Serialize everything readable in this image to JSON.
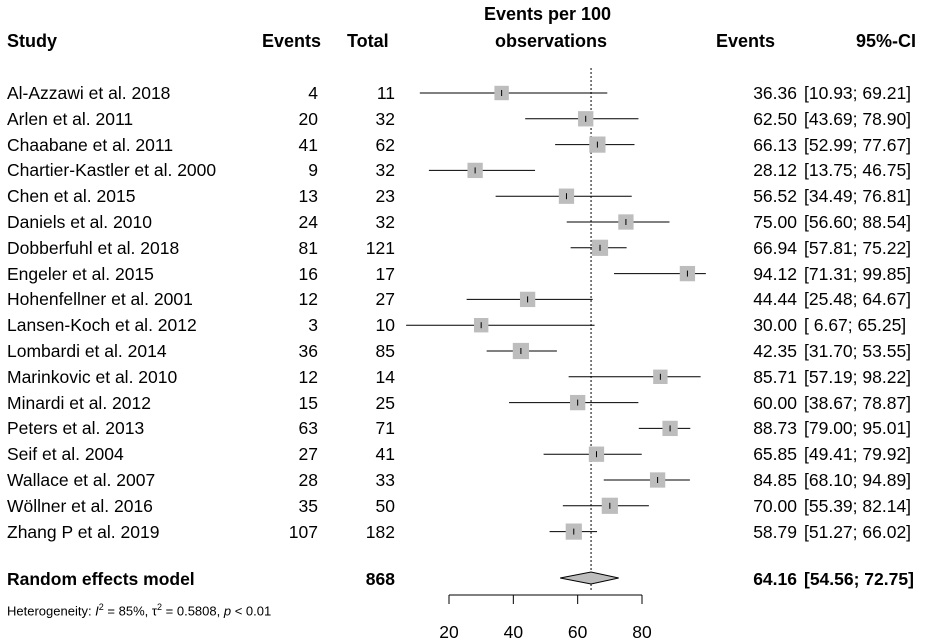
{
  "headers": {
    "study": "Study",
    "events": "Events",
    "total": "Total",
    "plot_title_line1": "Events per 100",
    "plot_title_line2": "observations",
    "events_rate": "Events",
    "ci": "95%-CI"
  },
  "studies": [
    {
      "name": "Al-Azzawi et al. 2018",
      "events": "4",
      "total": "11",
      "rate": "36.36",
      "ci": "[10.93; 69.21]",
      "est": 36.36,
      "lo": 10.93,
      "hi": 69.21,
      "weight": 0.8
    },
    {
      "name": "Arlen et al. 2011",
      "events": "20",
      "total": "32",
      "rate": "62.50",
      "ci": "[43.69; 78.90]",
      "est": 62.5,
      "lo": 43.69,
      "hi": 78.9,
      "weight": 0.85
    },
    {
      "name": "Chaabane et al. 2011",
      "events": "41",
      "total": "62",
      "rate": "66.13",
      "ci": "[52.99; 77.67]",
      "est": 66.13,
      "lo": 52.99,
      "hi": 77.67,
      "weight": 0.9
    },
    {
      "name": "Chartier-Kastler et al. 2000",
      "events": "9",
      "total": "32",
      "rate": "28.12",
      "ci": "[13.75; 46.75]",
      "est": 28.12,
      "lo": 13.75,
      "hi": 46.75,
      "weight": 0.85
    },
    {
      "name": "Chen et al. 2015",
      "events": "13",
      "total": "23",
      "rate": "56.52",
      "ci": "[34.49; 76.81]",
      "est": 56.52,
      "lo": 34.49,
      "hi": 76.81,
      "weight": 0.85
    },
    {
      "name": "Daniels et al. 2010",
      "events": "24",
      "total": "32",
      "rate": "75.00",
      "ci": "[56.60; 88.54]",
      "est": 75.0,
      "lo": 56.6,
      "hi": 88.54,
      "weight": 0.85
    },
    {
      "name": "Dobberfuhl et al. 2018",
      "events": "81",
      "total": "121",
      "rate": "66.94",
      "ci": "[57.81; 75.22]",
      "est": 66.94,
      "lo": 57.81,
      "hi": 75.22,
      "weight": 0.9
    },
    {
      "name": "Engeler et al. 2015",
      "events": "16",
      "total": "17",
      "rate": "94.12",
      "ci": "[71.31; 99.85]",
      "est": 94.12,
      "lo": 71.31,
      "hi": 99.85,
      "weight": 0.85
    },
    {
      "name": "Hohenfellner et al. 2001",
      "events": "12",
      "total": "27",
      "rate": "44.44",
      "ci": "[25.48; 64.67]",
      "est": 44.44,
      "lo": 25.48,
      "hi": 64.67,
      "weight": 0.85
    },
    {
      "name": "Lansen-Koch et al. 2012",
      "events": "3",
      "total": "10",
      "rate": "30.00",
      "ci": "[ 6.67; 65.25]",
      "est": 30.0,
      "lo": 6.67,
      "hi": 65.25,
      "weight": 0.8
    },
    {
      "name": "Lombardi et al. 2014",
      "events": "36",
      "total": "85",
      "rate": "42.35",
      "ci": "[31.70; 53.55]",
      "est": 42.35,
      "lo": 31.7,
      "hi": 53.55,
      "weight": 0.9
    },
    {
      "name": "Marinkovic et al.  2010",
      "events": "12",
      "total": "14",
      "rate": "85.71",
      "ci": "[57.19; 98.22]",
      "est": 85.71,
      "lo": 57.19,
      "hi": 98.22,
      "weight": 0.8
    },
    {
      "name": "Minardi et al. 2012",
      "events": "15",
      "total": "25",
      "rate": "60.00",
      "ci": "[38.67; 78.87]",
      "est": 60.0,
      "lo": 38.67,
      "hi": 78.87,
      "weight": 0.85
    },
    {
      "name": "Peters et al. 2013",
      "events": "63",
      "total": "71",
      "rate": "88.73",
      "ci": "[79.00; 95.01]",
      "est": 88.73,
      "lo": 79.0,
      "hi": 95.01,
      "weight": 0.85
    },
    {
      "name": "Seif et al. 2004",
      "events": "27",
      "total": "41",
      "rate": "65.85",
      "ci": "[49.41; 79.92]",
      "est": 65.85,
      "lo": 49.41,
      "hi": 79.92,
      "weight": 0.85
    },
    {
      "name": "Wallace et al. 2007",
      "events": "28",
      "total": "33",
      "rate": "84.85",
      "ci": "[68.10; 94.89]",
      "est": 84.85,
      "lo": 68.1,
      "hi": 94.89,
      "weight": 0.85
    },
    {
      "name": "Wöllner et al. 2016",
      "events": "35",
      "total": "50",
      "rate": "70.00",
      "ci": "[55.39; 82.14]",
      "est": 70.0,
      "lo": 55.39,
      "hi": 82.14,
      "weight": 0.9
    },
    {
      "name": "Zhang P et al. 2019",
      "events": "107",
      "total": "182",
      "rate": "58.79",
      "ci": "[51.27; 66.02]",
      "est": 58.79,
      "lo": 51.27,
      "hi": 66.02,
      "weight": 0.9
    }
  ],
  "summary": {
    "label": "Random effects model",
    "total": "868",
    "rate": "64.16",
    "ci": "[54.56; 72.75]",
    "est": 64.16,
    "lo": 54.56,
    "hi": 72.75
  },
  "heterogeneity": {
    "prefix": "Heterogeneity: ",
    "i2_sym": "I",
    "i2_sup": "2",
    "i2_val": " = 85%, ",
    "tau_sym": "τ",
    "tau_sup": "2",
    "tau_val": " = 0.5808, ",
    "p_sym": "p",
    "p_val": " < 0.01"
  },
  "chart_data": {
    "type": "forest",
    "axis_ticks": [
      20,
      40,
      60,
      80
    ],
    "xlim": [
      0,
      100
    ],
    "reference_line": 64.16,
    "colors": {
      "square": "#bdbdbd",
      "diamond": "#bdbdbd",
      "line": "#000000"
    }
  }
}
